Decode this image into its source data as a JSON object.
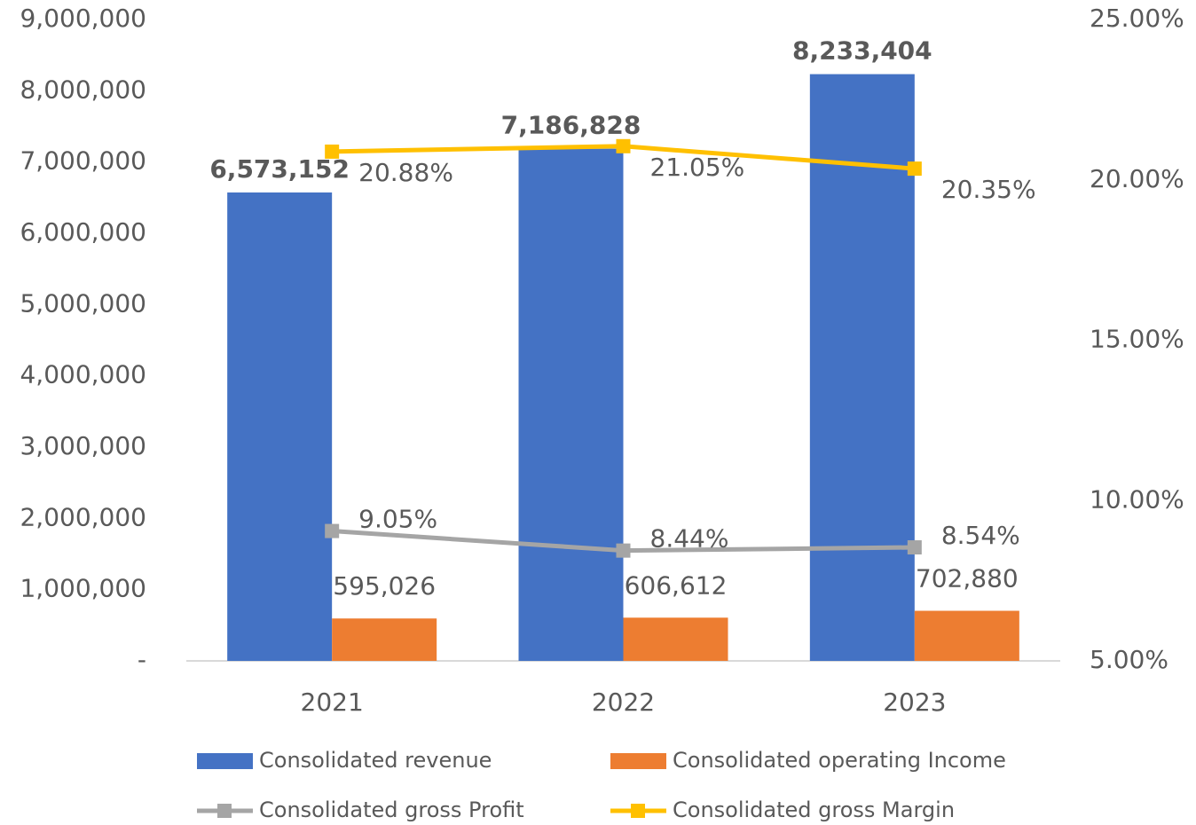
{
  "chart_data": {
    "type": "bar",
    "categories": [
      "2021",
      "2022",
      "2023"
    ],
    "series": [
      {
        "name": "Consolidated revenue",
        "color": "#4472c4",
        "type": "bar",
        "axis": "y",
        "values": [
          6573152,
          7186828,
          8233404
        ],
        "value_labels": [
          "6,573,152",
          "7,186,828",
          "8,233,404"
        ]
      },
      {
        "name": "Consolidated operating Income",
        "color": "#ed7d31",
        "type": "bar",
        "axis": "y",
        "values": [
          595026,
          606612,
          702880
        ],
        "value_labels": [
          "595,026",
          "606,612",
          "702,880"
        ]
      },
      {
        "name": "Consolidated gross Profit",
        "color": "#a5a5a5",
        "type": "line",
        "axis": "y2",
        "values": [
          9.05,
          8.44,
          8.54
        ],
        "value_labels": [
          "9.05%",
          "8.44%",
          "8.54%"
        ]
      },
      {
        "name": "Consolidated gross Margin",
        "color": "#ffc000",
        "type": "line",
        "axis": "y2",
        "values": [
          20.88,
          21.05,
          20.35
        ],
        "value_labels": [
          "20.88%",
          "21.05%",
          "20.35%"
        ]
      }
    ],
    "ylim": [
      0,
      9000000
    ],
    "yticks": [
      {
        "value": 0,
        "label": "-"
      },
      {
        "value": 1000000,
        "label": "1,000,000"
      },
      {
        "value": 2000000,
        "label": "2,000,000"
      },
      {
        "value": 3000000,
        "label": "3,000,000"
      },
      {
        "value": 4000000,
        "label": "4,000,000"
      },
      {
        "value": 5000000,
        "label": "5,000,000"
      },
      {
        "value": 6000000,
        "label": "6,000,000"
      },
      {
        "value": 7000000,
        "label": "7,000,000"
      },
      {
        "value": 8000000,
        "label": "8,000,000"
      },
      {
        "value": 9000000,
        "label": "9,000,000"
      }
    ],
    "y2lim": [
      5,
      25
    ],
    "y2ticks": [
      {
        "value": 5,
        "label": "5.00%"
      },
      {
        "value": 10,
        "label": "10.00%"
      },
      {
        "value": 15,
        "label": "15.00%"
      },
      {
        "value": 20,
        "label": "20.00%"
      },
      {
        "value": 25,
        "label": "25.00%"
      }
    ],
    "grid": false,
    "legend": "bottom"
  }
}
